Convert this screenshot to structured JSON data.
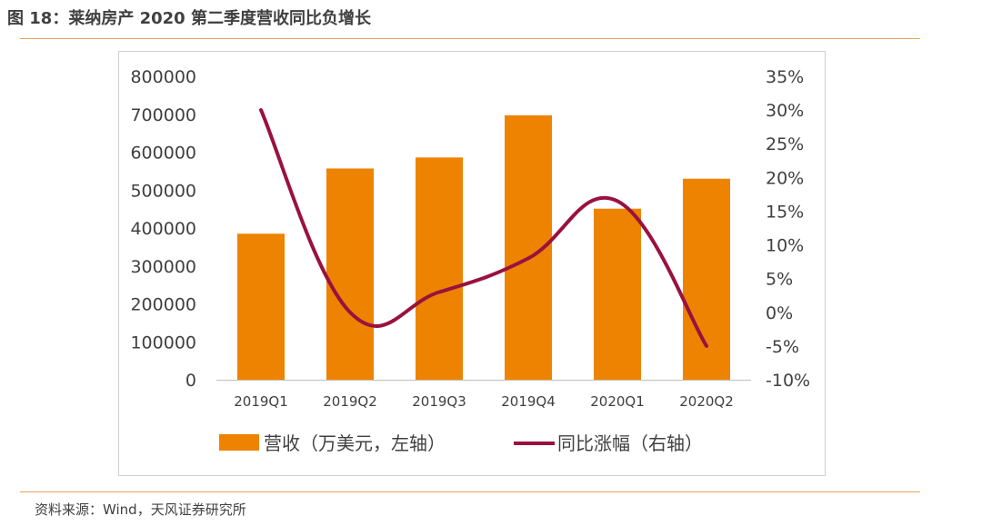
{
  "figure": {
    "title": "图 18：莱纳房产 2020 第二季度营收同比负增长",
    "source": "资料来源：Wind，天风证券研究所"
  },
  "colors": {
    "bar": "#ed8300",
    "line": "#9a1140",
    "rule": "#e8a35a",
    "axis": "#bfbfbf",
    "text": "#404040"
  },
  "chart_data": {
    "type": "bar",
    "categories": [
      "2019Q1",
      "2019Q2",
      "2019Q3",
      "2019Q4",
      "2020Q1",
      "2020Q2"
    ],
    "series": [
      {
        "name": "营收（万美元，左轴）",
        "type": "bar",
        "axis": "left",
        "values": [
          385000,
          557000,
          586000,
          697000,
          451000,
          530000
        ]
      },
      {
        "name": "同比涨幅（右轴）",
        "type": "line",
        "axis": "right",
        "smooth": true,
        "values": [
          0.3,
          0.0,
          0.03,
          0.08,
          0.165,
          -0.05
        ]
      }
    ],
    "y_left": {
      "min": 0,
      "max": 800000,
      "step": 100000,
      "tick_labels": [
        "0",
        "100000",
        "200000",
        "300000",
        "400000",
        "500000",
        "600000",
        "700000",
        "800000"
      ]
    },
    "y_right": {
      "min": -0.1,
      "max": 0.35,
      "step": 0.05,
      "tick_labels": [
        "-10%",
        "-5%",
        "0%",
        "5%",
        "10%",
        "15%",
        "20%",
        "25%",
        "30%",
        "35%"
      ]
    },
    "legend_position": "bottom",
    "grid": false
  }
}
